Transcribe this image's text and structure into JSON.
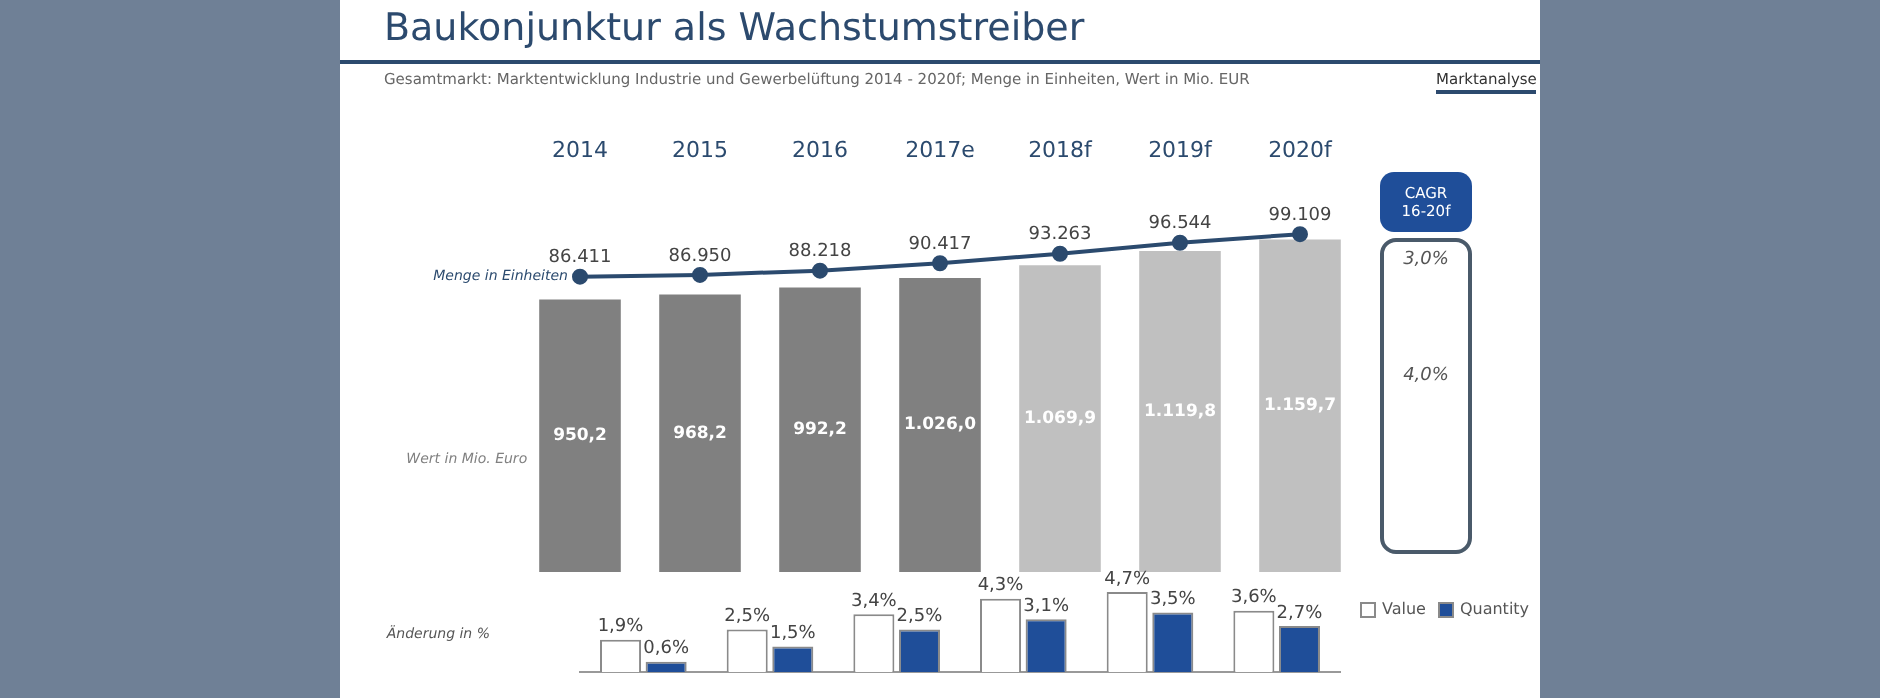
{
  "chart_data": [
    {
      "type": "bar",
      "title": "Baukonjunktur als Wachstumstreiber",
      "subtitle": "Gesamtmarkt: Marktentwicklung Industrie und Gewerbelüftung 2014 - 2020f; Menge in Einheiten, Wert in Mio. EUR",
      "annotations": [
        "Marktanalyse"
      ],
      "categories": [
        "2014",
        "2015",
        "2016",
        "2017e",
        "2018f",
        "2019f",
        "2020f"
      ],
      "grid": false,
      "legend": false,
      "marker": "circle",
      "series": [
        {
          "type": "bar",
          "name": "Wert in Mio. Euro",
          "colors": [
            "#808080",
            "#808080",
            "#808080",
            "#808080",
            "#c0c0c0",
            "#c0c0c0",
            "#c0c0c0"
          ],
          "values": [
            950.2,
            968.2,
            992.2,
            1026.0,
            1069.9,
            1119.8,
            1159.7
          ],
          "value_labels": [
            "950,2",
            "968,2",
            "992,2",
            "1.026,0",
            "1.069,9",
            "1.119,8",
            "1.159,7"
          ]
        },
        {
          "type": "line",
          "name": "Menge in Einheiten",
          "color": "#2b4a6e",
          "axis": "y2",
          "values": [
            86411,
            86950,
            88218,
            90417,
            93263,
            96544,
            99109
          ],
          "value_labels": [
            "86.411",
            "86.950",
            "88.218",
            "90.417",
            "93.263",
            "96.544",
            "99.109"
          ]
        }
      ]
    },
    {
      "type": "bar",
      "ylabel": "Änderung in %",
      "categories": [
        null,
        null,
        null,
        null,
        null,
        null
      ],
      "grid": false,
      "legend": "right",
      "series": [
        {
          "name": "Value",
          "color": "#ffffff",
          "values": [
            1.9,
            2.5,
            3.4,
            4.3,
            4.7,
            3.6
          ],
          "value_labels": [
            "1,9%",
            "2,5%",
            "3,4%",
            "4,3%",
            "4,7%",
            "3,6%"
          ]
        },
        {
          "name": "Quantity",
          "color": "#1f4e99",
          "values": [
            0.6,
            1.5,
            2.5,
            3.1,
            3.5,
            2.7
          ],
          "value_labels": [
            "0,6%",
            "1,5%",
            "2,5%",
            "3,1%",
            "3,5%",
            "2,7%"
          ]
        }
      ]
    },
    {
      "type": "other",
      "title": "CAGR 16-20f",
      "annotations": [
        "3,0%",
        "4,0%"
      ]
    }
  ]
}
